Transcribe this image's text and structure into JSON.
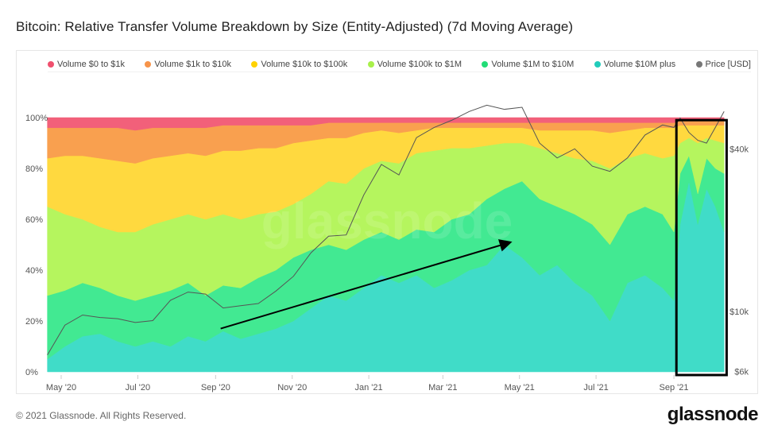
{
  "title": "Bitcoin: Relative Transfer Volume Breakdown by Size (Entity-Adjusted) (7d Moving Average)",
  "footer": "© 2021 Glassnode. All Rights Reserved.",
  "logo": "glassnode",
  "watermark": "glassnode",
  "chart_data": {
    "type": "area",
    "stacked": true,
    "title": "Bitcoin: Relative Transfer Volume Breakdown by Size (Entity-Adjusted) (7d Moving Average)",
    "legend_placement": "top",
    "grid": false,
    "x": [
      "2020-04-20",
      "2020-05-04",
      "2020-05-18",
      "2020-06-01",
      "2020-06-15",
      "2020-06-29",
      "2020-07-13",
      "2020-07-27",
      "2020-08-10",
      "2020-08-24",
      "2020-09-07",
      "2020-09-21",
      "2020-10-05",
      "2020-10-19",
      "2020-11-02",
      "2020-11-16",
      "2020-11-30",
      "2020-12-14",
      "2020-12-28",
      "2021-01-11",
      "2021-01-25",
      "2021-02-08",
      "2021-02-22",
      "2021-03-08",
      "2021-03-22",
      "2021-04-05",
      "2021-04-19",
      "2021-05-03",
      "2021-05-17",
      "2021-05-31",
      "2021-06-14",
      "2021-06-28",
      "2021-07-12",
      "2021-07-26",
      "2021-08-09",
      "2021-08-23",
      "2021-09-01",
      "2021-09-06",
      "2021-09-13",
      "2021-09-20",
      "2021-09-27",
      "2021-10-04",
      "2021-10-11"
    ],
    "x_ticks": [
      "May '20",
      "Jul '20",
      "Sep '20",
      "Nov '20",
      "Jan '21",
      "Mar '21",
      "May '21",
      "Jul '21",
      "Sep '21"
    ],
    "x_tick_dates": [
      "2020-05-01",
      "2020-07-01",
      "2020-09-01",
      "2020-11-01",
      "2021-01-01",
      "2021-03-01",
      "2021-05-01",
      "2021-07-01",
      "2021-09-01"
    ],
    "y_left": {
      "unit": "%",
      "range": [
        0,
        100
      ],
      "ticks": [
        "0%",
        "20%",
        "40%",
        "60%",
        "80%",
        "100%"
      ],
      "tick_values": [
        0,
        20,
        40,
        60,
        80,
        100
      ]
    },
    "y_right": {
      "scale": "log",
      "unit": "USD",
      "ticks": [
        "$6k",
        "$10k",
        "$40k"
      ],
      "tick_values": [
        6000,
        10000,
        40000
      ]
    },
    "series": [
      {
        "name": "Volume $10M plus",
        "color": "#40dcc8",
        "values": [
          5,
          10,
          14,
          15,
          12,
          10,
          12,
          10,
          14,
          12,
          16,
          13,
          15,
          17,
          20,
          25,
          30,
          28,
          33,
          38,
          35,
          38,
          33,
          36,
          40,
          42,
          50,
          45,
          38,
          42,
          35,
          30,
          20,
          35,
          38,
          33,
          28,
          58,
          75,
          58,
          72,
          65,
          55
        ]
      },
      {
        "name": "Volume $1M to $10M",
        "color": "#42e992",
        "values": [
          25,
          22,
          21,
          18,
          18,
          18,
          18,
          22,
          21,
          18,
          18,
          20,
          22,
          23,
          25,
          23,
          20,
          20,
          19,
          17,
          17,
          18,
          22,
          24,
          22,
          26,
          22,
          30,
          30,
          23,
          27,
          28,
          30,
          27,
          27,
          29,
          27,
          20,
          10,
          12,
          12,
          15,
          23
        ]
      },
      {
        "name": "Volume $100k to $1M",
        "color": "#b5f55e",
        "values": [
          35,
          30,
          25,
          24,
          25,
          27,
          28,
          28,
          27,
          30,
          28,
          27,
          25,
          23,
          21,
          22,
          25,
          26,
          28,
          28,
          30,
          30,
          32,
          28,
          26,
          21,
          18,
          15,
          20,
          21,
          22,
          25,
          30,
          22,
          21,
          22,
          30,
          12,
          7,
          20,
          8,
          11,
          12
        ]
      },
      {
        "name": "Volume $10k to $100k",
        "color": "#ffd93f",
        "values": [
          19,
          23,
          25,
          27,
          28,
          27,
          26,
          25,
          24,
          25,
          25,
          27,
          26,
          25,
          24,
          21,
          17,
          18,
          14,
          12,
          12,
          9,
          9,
          8,
          8,
          7,
          6,
          6,
          7,
          9,
          11,
          12,
          14,
          11,
          10,
          12,
          11,
          7,
          5,
          7,
          5,
          6,
          7
        ]
      },
      {
        "name": "Volume $1k to $10k",
        "color": "#f9a04f",
        "values": [
          12,
          11,
          11,
          12,
          13,
          13,
          12,
          11,
          10,
          11,
          10,
          10,
          9,
          9,
          7,
          6,
          6,
          6,
          4,
          3,
          4,
          3,
          2,
          2,
          2,
          2,
          2,
          2,
          3,
          3,
          3,
          3,
          4,
          3,
          2,
          2,
          2,
          2,
          2,
          2,
          2,
          2,
          2
        ]
      },
      {
        "name": "Volume $0 to $1k",
        "color": "#f2607a",
        "values": [
          4,
          4,
          4,
          4,
          4,
          5,
          4,
          4,
          4,
          4,
          3,
          3,
          3,
          3,
          3,
          3,
          2,
          2,
          2,
          2,
          2,
          2,
          2,
          2,
          2,
          2,
          2,
          2,
          2,
          2,
          2,
          2,
          2,
          2,
          2,
          2,
          2,
          1,
          1,
          1,
          1,
          1,
          1
        ]
      }
    ],
    "price": {
      "name": "Price [USD]",
      "color": "#666666",
      "axis": "right",
      "values": [
        6900,
        8900,
        9700,
        9500,
        9400,
        9100,
        9250,
        11000,
        11800,
        11600,
        10300,
        10500,
        10700,
        11900,
        13500,
        16500,
        19000,
        19200,
        27000,
        35000,
        32000,
        44000,
        48000,
        51000,
        55000,
        58000,
        56000,
        57000,
        42000,
        37000,
        40000,
        34500,
        33000,
        37000,
        45000,
        49000,
        48000,
        52000,
        46000,
        43000,
        42000,
        48000,
        55000
      ]
    },
    "legend": [
      {
        "label": "Volume $0 to $1k",
        "color": "#f0506e"
      },
      {
        "label": "Volume $1k to $10k",
        "color": "#f7944a"
      },
      {
        "label": "Volume $10k to $100k",
        "color": "#ffd200"
      },
      {
        "label": "Volume $100k to $1M",
        "color": "#a8f04a"
      },
      {
        "label": "Volume $1M to $10M",
        "color": "#22dd77"
      },
      {
        "label": "Volume $10M plus",
        "color": "#22ccbb"
      },
      {
        "label": "Price [USD]",
        "color": "#777777"
      }
    ],
    "annotations": [
      {
        "type": "arrow",
        "from": [
          "2020-09-05",
          17
        ],
        "to": [
          "2021-04-24",
          51
        ]
      },
      {
        "type": "box",
        "x_range": [
          "2021-09-03",
          "2021-10-13"
        ],
        "y_range": [
          0,
          99
        ]
      }
    ]
  }
}
